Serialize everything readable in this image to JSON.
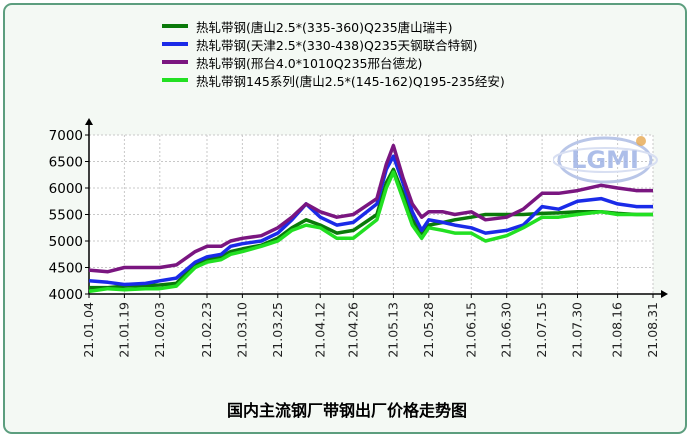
{
  "chart_data": {
    "type": "line",
    "title": "国内主流钢厂带钢出厂价格走势图",
    "xlabel": "",
    "ylabel": "",
    "ylim": [
      4000,
      7000
    ],
    "yticks": [
      "4000",
      "4500",
      "5000",
      "5500",
      "6000",
      "6500",
      "7000"
    ],
    "x_tick_labels": [
      "21.01.04",
      "21.01.19",
      "21.02.03",
      "21.02.23",
      "21.03.10",
      "21.03.25",
      "21.04.12",
      "21.04.26",
      "21.05.13",
      "21.05.28",
      "21.06.15",
      "21.06.30",
      "21.07.15",
      "21.07.30",
      "21.08.16",
      "21.08.31"
    ],
    "grid": true,
    "legend_position": "top",
    "logo_text": "LGMI",
    "series": [
      {
        "name": "热轧带钢(唐山2.5*(335-360)Q235唐山瑞丰)",
        "color": "#0a7a0a",
        "points": [
          [
            "21.01.04",
            4120
          ],
          [
            "21.01.12",
            4120
          ],
          [
            "21.01.19",
            4150
          ],
          [
            "21.01.28",
            4160
          ],
          [
            "21.02.03",
            4170
          ],
          [
            "21.02.10",
            4200
          ],
          [
            "21.02.18",
            4550
          ],
          [
            "21.02.23",
            4650
          ],
          [
            "21.03.01",
            4700
          ],
          [
            "21.03.05",
            4800
          ],
          [
            "21.03.10",
            4850
          ],
          [
            "21.03.18",
            4920
          ],
          [
            "21.03.25",
            5050
          ],
          [
            "21.03.31",
            5250
          ],
          [
            "21.04.06",
            5400
          ],
          [
            "21.04.12",
            5300
          ],
          [
            "21.04.19",
            5150
          ],
          [
            "21.04.26",
            5200
          ],
          [
            "21.05.06",
            5500
          ],
          [
            "21.05.10",
            6100
          ],
          [
            "21.05.13",
            6350
          ],
          [
            "21.05.17",
            5900
          ],
          [
            "21.05.21",
            5400
          ],
          [
            "21.05.25",
            5150
          ],
          [
            "21.05.28",
            5300
          ],
          [
            "21.06.03",
            5350
          ],
          [
            "21.06.08",
            5400
          ],
          [
            "21.06.15",
            5450
          ],
          [
            "21.06.21",
            5500
          ],
          [
            "21.06.30",
            5500
          ],
          [
            "21.07.07",
            5500
          ],
          [
            "21.07.15",
            5520
          ],
          [
            "21.07.22",
            5530
          ],
          [
            "21.07.30",
            5550
          ],
          [
            "21.08.09",
            5550
          ],
          [
            "21.08.16",
            5520
          ],
          [
            "21.08.24",
            5500
          ],
          [
            "21.08.31",
            5500
          ]
        ]
      },
      {
        "name": "热轧带钢(天津2.5*(330-438)Q235天钢联合特钢)",
        "color": "#1a2be8",
        "points": [
          [
            "21.01.04",
            4250
          ],
          [
            "21.01.12",
            4220
          ],
          [
            "21.01.19",
            4180
          ],
          [
            "21.01.28",
            4200
          ],
          [
            "21.02.03",
            4250
          ],
          [
            "21.02.10",
            4300
          ],
          [
            "21.02.18",
            4600
          ],
          [
            "21.02.23",
            4700
          ],
          [
            "21.03.01",
            4750
          ],
          [
            "21.03.05",
            4900
          ],
          [
            "21.03.10",
            4950
          ],
          [
            "21.03.18",
            5000
          ],
          [
            "21.03.25",
            5150
          ],
          [
            "21.03.31",
            5400
          ],
          [
            "21.04.06",
            5700
          ],
          [
            "21.04.12",
            5450
          ],
          [
            "21.04.19",
            5300
          ],
          [
            "21.04.26",
            5350
          ],
          [
            "21.05.06",
            5700
          ],
          [
            "21.05.10",
            6350
          ],
          [
            "21.05.13",
            6600
          ],
          [
            "21.05.17",
            6100
          ],
          [
            "21.05.21",
            5550
          ],
          [
            "21.05.25",
            5200
          ],
          [
            "21.05.28",
            5400
          ],
          [
            "21.06.03",
            5350
          ],
          [
            "21.06.08",
            5300
          ],
          [
            "21.06.15",
            5250
          ],
          [
            "21.06.21",
            5150
          ],
          [
            "21.06.30",
            5200
          ],
          [
            "21.07.07",
            5300
          ],
          [
            "21.07.15",
            5650
          ],
          [
            "21.07.22",
            5600
          ],
          [
            "21.07.30",
            5750
          ],
          [
            "21.08.09",
            5800
          ],
          [
            "21.08.16",
            5700
          ],
          [
            "21.08.24",
            5650
          ],
          [
            "21.08.31",
            5650
          ]
        ]
      },
      {
        "name": "热轧带钢(邢台4.0*1010Q235邢台德龙)",
        "color": "#7a1680",
        "points": [
          [
            "21.01.04",
            4450
          ],
          [
            "21.01.12",
            4420
          ],
          [
            "21.01.19",
            4500
          ],
          [
            "21.01.28",
            4500
          ],
          [
            "21.02.03",
            4500
          ],
          [
            "21.02.10",
            4550
          ],
          [
            "21.02.18",
            4800
          ],
          [
            "21.02.23",
            4900
          ],
          [
            "21.03.01",
            4900
          ],
          [
            "21.03.05",
            5000
          ],
          [
            "21.03.10",
            5050
          ],
          [
            "21.03.18",
            5100
          ],
          [
            "21.03.25",
            5250
          ],
          [
            "21.03.31",
            5450
          ],
          [
            "21.04.06",
            5700
          ],
          [
            "21.04.12",
            5550
          ],
          [
            "21.04.19",
            5450
          ],
          [
            "21.04.26",
            5500
          ],
          [
            "21.05.06",
            5800
          ],
          [
            "21.05.10",
            6450
          ],
          [
            "21.05.13",
            6800
          ],
          [
            "21.05.17",
            6200
          ],
          [
            "21.05.21",
            5700
          ],
          [
            "21.05.25",
            5450
          ],
          [
            "21.05.28",
            5550
          ],
          [
            "21.06.03",
            5550
          ],
          [
            "21.06.08",
            5500
          ],
          [
            "21.06.15",
            5550
          ],
          [
            "21.06.21",
            5400
          ],
          [
            "21.06.30",
            5450
          ],
          [
            "21.07.07",
            5600
          ],
          [
            "21.07.15",
            5900
          ],
          [
            "21.07.22",
            5900
          ],
          [
            "21.07.30",
            5950
          ],
          [
            "21.08.09",
            6050
          ],
          [
            "21.08.16",
            6000
          ],
          [
            "21.08.24",
            5950
          ],
          [
            "21.08.31",
            5950
          ]
        ]
      },
      {
        "name": "热轧带钢145系列(唐山2.5*(145-162)Q195-235经安)",
        "color": "#22e022",
        "points": [
          [
            "21.01.04",
            4050
          ],
          [
            "21.01.12",
            4100
          ],
          [
            "21.01.19",
            4080
          ],
          [
            "21.01.28",
            4100
          ],
          [
            "21.02.03",
            4100
          ],
          [
            "21.02.10",
            4150
          ],
          [
            "21.02.18",
            4500
          ],
          [
            "21.02.23",
            4600
          ],
          [
            "21.03.01",
            4650
          ],
          [
            "21.03.05",
            4750
          ],
          [
            "21.03.10",
            4800
          ],
          [
            "21.03.18",
            4900
          ],
          [
            "21.03.25",
            5000
          ],
          [
            "21.03.31",
            5200
          ],
          [
            "21.04.06",
            5300
          ],
          [
            "21.04.12",
            5250
          ],
          [
            "21.04.19",
            5050
          ],
          [
            "21.04.26",
            5050
          ],
          [
            "21.05.06",
            5400
          ],
          [
            "21.05.10",
            6000
          ],
          [
            "21.05.13",
            6300
          ],
          [
            "21.05.17",
            5800
          ],
          [
            "21.05.21",
            5300
          ],
          [
            "21.05.25",
            5050
          ],
          [
            "21.05.28",
            5250
          ],
          [
            "21.06.03",
            5200
          ],
          [
            "21.06.08",
            5150
          ],
          [
            "21.06.15",
            5150
          ],
          [
            "21.06.21",
            5000
          ],
          [
            "21.06.30",
            5100
          ],
          [
            "21.07.07",
            5250
          ],
          [
            "21.07.15",
            5450
          ],
          [
            "21.07.22",
            5450
          ],
          [
            "21.07.30",
            5500
          ],
          [
            "21.08.09",
            5550
          ],
          [
            "21.08.16",
            5500
          ],
          [
            "21.08.24",
            5500
          ],
          [
            "21.08.31",
            5500
          ]
        ]
      }
    ]
  }
}
